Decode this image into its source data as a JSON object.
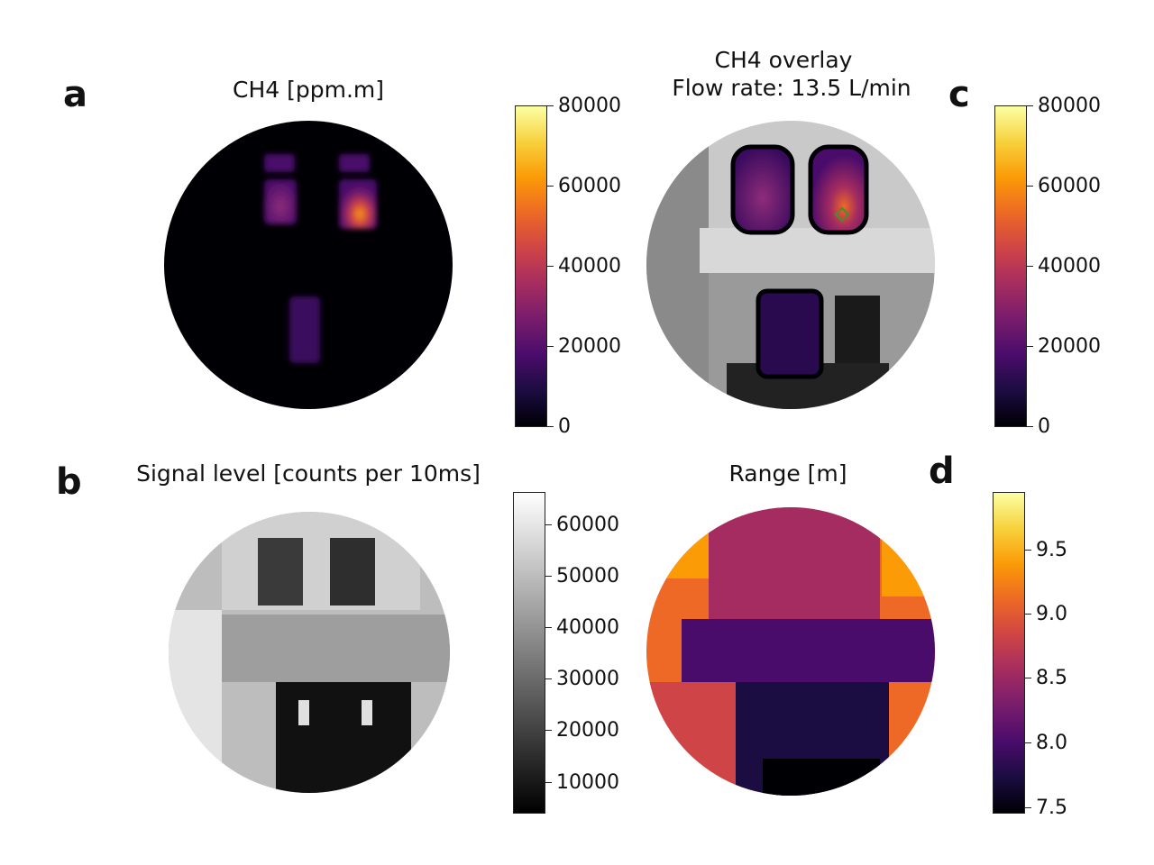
{
  "chart_data": [
    {
      "panel": "a",
      "type": "heatmap",
      "title": "CH4 [ppm.m]",
      "colormap": "inferno",
      "colorbar": {
        "ticks": [
          "0",
          "20000",
          "40000",
          "60000",
          "80000"
        ],
        "vmin": 0,
        "vmax": 80000
      }
    },
    {
      "panel": "c",
      "type": "heatmap",
      "title_lines": [
        "CH4 overlay",
        "Flow rate: 13.5 L/min"
      ],
      "colormap": "inferno",
      "colorbar": {
        "ticks": [
          "0",
          "20000",
          "40000",
          "60000",
          "80000"
        ],
        "vmin": 0,
        "vmax": 80000
      }
    },
    {
      "panel": "b",
      "type": "heatmap",
      "title": "Signal level [counts per 10ms]",
      "colormap": "gray",
      "colorbar": {
        "ticks": [
          "10000",
          "20000",
          "30000",
          "40000",
          "50000",
          "60000"
        ],
        "vmin": 5000,
        "vmax": 66000
      }
    },
    {
      "panel": "d",
      "type": "heatmap",
      "title": "Range [m]",
      "colormap": "inferno",
      "colorbar": {
        "ticks": [
          "7.5",
          "8.0",
          "8.5",
          "9.0",
          "9.5"
        ],
        "vmin": 7.45,
        "vmax": 9.95
      }
    }
  ],
  "colors": {
    "inferno": [
      "#000004",
      "#1b0c41",
      "#4a0c6b",
      "#781c6d",
      "#a52c60",
      "#cf4446",
      "#ed6925",
      "#fb9b06",
      "#f7d13d",
      "#fcffa4"
    ],
    "gray": [
      "#000000",
      "#ffffff"
    ]
  }
}
